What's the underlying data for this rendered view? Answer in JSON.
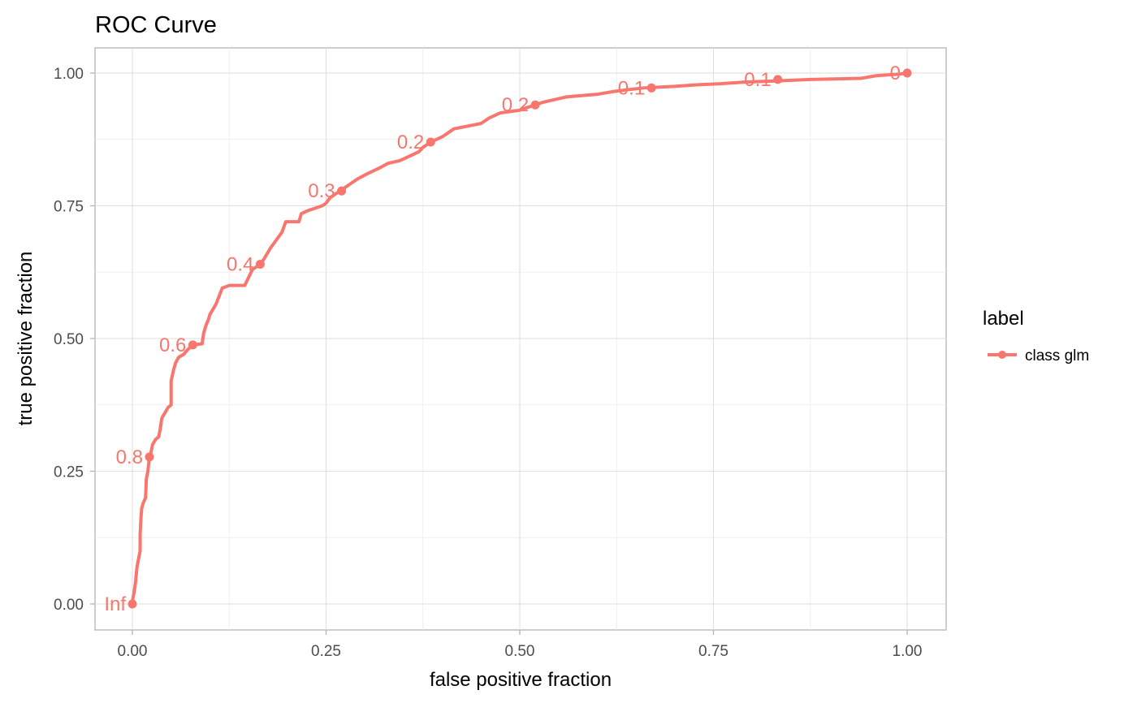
{
  "chart_data": {
    "type": "line",
    "title": "ROC Curve",
    "xlabel": "false positive fraction",
    "ylabel": "true positive fraction",
    "xlim": [
      0,
      1
    ],
    "ylim": [
      0,
      1
    ],
    "xticks": [
      {
        "value": 0,
        "label": "0.00"
      },
      {
        "value": 0.25,
        "label": "0.25"
      },
      {
        "value": 0.5,
        "label": "0.50"
      },
      {
        "value": 0.75,
        "label": "0.75"
      },
      {
        "value": 1,
        "label": "1.00"
      }
    ],
    "yticks": [
      {
        "value": 0,
        "label": "0.00"
      },
      {
        "value": 0.25,
        "label": "0.25"
      },
      {
        "value": 0.5,
        "label": "0.50"
      },
      {
        "value": 0.75,
        "label": "0.75"
      },
      {
        "value": 1,
        "label": "1.00"
      }
    ],
    "grid": true,
    "legend": {
      "title": "label",
      "position": "right"
    },
    "series": [
      {
        "name": "class glm",
        "color": "#f8766d",
        "points": [
          [
            0,
            0
          ],
          [
            0,
            0.005
          ],
          [
            0.002,
            0.02
          ],
          [
            0.004,
            0.04
          ],
          [
            0.005,
            0.055
          ],
          [
            0.006,
            0.07
          ],
          [
            0.008,
            0.085
          ],
          [
            0.01,
            0.1
          ],
          [
            0.01,
            0.13
          ],
          [
            0.011,
            0.16
          ],
          [
            0.012,
            0.18
          ],
          [
            0.014,
            0.19
          ],
          [
            0.017,
            0.2
          ],
          [
            0.018,
            0.235
          ],
          [
            0.02,
            0.25
          ],
          [
            0.022,
            0.277
          ],
          [
            0.024,
            0.285
          ],
          [
            0.026,
            0.3
          ],
          [
            0.03,
            0.31
          ],
          [
            0.034,
            0.315
          ],
          [
            0.036,
            0.33
          ],
          [
            0.038,
            0.35
          ],
          [
            0.042,
            0.36
          ],
          [
            0.046,
            0.37
          ],
          [
            0.05,
            0.375
          ],
          [
            0.05,
            0.42
          ],
          [
            0.053,
            0.44
          ],
          [
            0.056,
            0.455
          ],
          [
            0.06,
            0.465
          ],
          [
            0.066,
            0.47
          ],
          [
            0.072,
            0.48
          ],
          [
            0.078,
            0.488
          ],
          [
            0.09,
            0.49
          ],
          [
            0.092,
            0.51
          ],
          [
            0.095,
            0.525
          ],
          [
            0.098,
            0.535
          ],
          [
            0.1,
            0.545
          ],
          [
            0.104,
            0.555
          ],
          [
            0.108,
            0.565
          ],
          [
            0.112,
            0.58
          ],
          [
            0.116,
            0.595
          ],
          [
            0.125,
            0.6
          ],
          [
            0.145,
            0.6
          ],
          [
            0.15,
            0.615
          ],
          [
            0.155,
            0.63
          ],
          [
            0.165,
            0.64
          ],
          [
            0.17,
            0.65
          ],
          [
            0.174,
            0.66
          ],
          [
            0.178,
            0.67
          ],
          [
            0.183,
            0.68
          ],
          [
            0.188,
            0.69
          ],
          [
            0.193,
            0.7
          ],
          [
            0.198,
            0.72
          ],
          [
            0.215,
            0.72
          ],
          [
            0.218,
            0.735
          ],
          [
            0.225,
            0.74
          ],
          [
            0.235,
            0.745
          ],
          [
            0.245,
            0.75
          ],
          [
            0.25,
            0.755
          ],
          [
            0.255,
            0.765
          ],
          [
            0.262,
            0.772
          ],
          [
            0.268,
            0.778
          ],
          [
            0.275,
            0.785
          ],
          [
            0.282,
            0.792
          ],
          [
            0.29,
            0.8
          ],
          [
            0.3,
            0.808
          ],
          [
            0.31,
            0.815
          ],
          [
            0.32,
            0.822
          ],
          [
            0.33,
            0.83
          ],
          [
            0.345,
            0.835
          ],
          [
            0.36,
            0.845
          ],
          [
            0.37,
            0.852
          ],
          [
            0.375,
            0.86
          ],
          [
            0.385,
            0.87
          ],
          [
            0.4,
            0.88
          ],
          [
            0.415,
            0.895
          ],
          [
            0.45,
            0.905
          ],
          [
            0.46,
            0.915
          ],
          [
            0.475,
            0.925
          ],
          [
            0.5,
            0.93
          ],
          [
            0.505,
            0.933
          ],
          [
            0.52,
            0.94
          ],
          [
            0.53,
            0.945
          ],
          [
            0.545,
            0.95
          ],
          [
            0.56,
            0.955
          ],
          [
            0.6,
            0.96
          ],
          [
            0.62,
            0.965
          ],
          [
            0.635,
            0.968
          ],
          [
            0.66,
            0.972
          ],
          [
            0.7,
            0.975
          ],
          [
            0.73,
            0.978
          ],
          [
            0.76,
            0.98
          ],
          [
            0.79,
            0.983
          ],
          [
            0.83,
            0.985
          ],
          [
            0.875,
            0.988
          ],
          [
            0.94,
            0.99
          ],
          [
            0.96,
            0.995
          ],
          [
            0.99,
            0.998
          ],
          [
            1,
            1
          ]
        ],
        "thresholds": [
          {
            "label": "Inf",
            "x": 0,
            "y": 0
          },
          {
            "label": "0.8",
            "x": 0.022,
            "y": 0.277
          },
          {
            "label": "0.6",
            "x": 0.078,
            "y": 0.488
          },
          {
            "label": "0.4",
            "x": 0.165,
            "y": 0.64
          },
          {
            "label": "0.3",
            "x": 0.27,
            "y": 0.778
          },
          {
            "label": "0.2",
            "x": 0.385,
            "y": 0.87
          },
          {
            "label": "0.2",
            "x": 0.52,
            "y": 0.94
          },
          {
            "label": "0.1",
            "x": 0.67,
            "y": 0.972
          },
          {
            "label": "0.1",
            "x": 0.833,
            "y": 0.988
          },
          {
            "label": "0",
            "x": 1,
            "y": 1
          }
        ]
      }
    ]
  }
}
